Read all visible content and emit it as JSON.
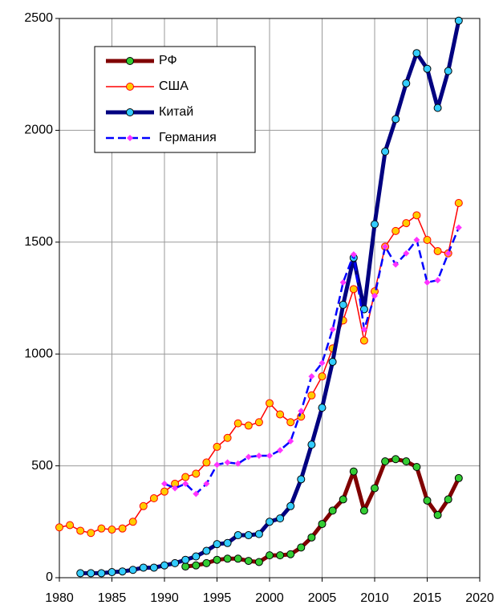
{
  "chart_data": {
    "type": "line",
    "xlim": [
      1980,
      2020
    ],
    "xticks": [
      1980,
      1985,
      1990,
      1995,
      2000,
      2005,
      2010,
      2015,
      2020
    ],
    "ylim": [
      0,
      2500
    ],
    "yticks": [
      0,
      500,
      1000,
      1500,
      2000,
      2500
    ],
    "grid": true,
    "legend": "upper left",
    "series": [
      {
        "name": "РФ",
        "color": "#800000",
        "marker_color": "#33cc33",
        "x": [
          1992,
          1993,
          1994,
          1995,
          1996,
          1997,
          1998,
          1999,
          2000,
          2001,
          2002,
          2003,
          2004,
          2005,
          2006,
          2007,
          2008,
          2009,
          2010,
          2011,
          2012,
          2013,
          2014,
          2015,
          2016,
          2017,
          2018
        ],
        "values": [
          50,
          55,
          65,
          80,
          85,
          85,
          75,
          70,
          100,
          100,
          105,
          135,
          180,
          240,
          300,
          350,
          475,
          300,
          400,
          520,
          530,
          520,
          495,
          345,
          280,
          350,
          445
        ]
      },
      {
        "name": "США",
        "color": "#ff0000",
        "marker_color": "#ffcc00",
        "x": [
          1980,
          1981,
          1982,
          1983,
          1984,
          1985,
          1986,
          1987,
          1988,
          1989,
          1990,
          1991,
          1992,
          1993,
          1994,
          1995,
          1996,
          1997,
          1998,
          1999,
          2000,
          2001,
          2002,
          2003,
          2004,
          2005,
          2006,
          2007,
          2008,
          2009,
          2010,
          2011,
          2012,
          2013,
          2014,
          2015,
          2016,
          2017,
          2018
        ],
        "values": [
          225,
          235,
          210,
          200,
          220,
          215,
          220,
          250,
          320,
          355,
          385,
          420,
          450,
          465,
          515,
          585,
          625,
          690,
          680,
          695,
          780,
          730,
          695,
          720,
          815,
          900,
          1025,
          1150,
          1290,
          1060,
          1280,
          1480,
          1550,
          1585,
          1620,
          1510,
          1460,
          1450,
          1675
        ]
      },
      {
        "name": "Китай",
        "color": "#000080",
        "marker_color": "#33ccff",
        "x": [
          1982,
          1983,
          1984,
          1985,
          1986,
          1987,
          1988,
          1989,
          1990,
          1991,
          1992,
          1993,
          1994,
          1995,
          1996,
          1997,
          1998,
          1999,
          2000,
          2001,
          2002,
          2003,
          2004,
          2005,
          2006,
          2007,
          2008,
          2009,
          2010,
          2011,
          2012,
          2013,
          2014,
          2015,
          2016,
          2017,
          2018
        ],
        "values": [
          20,
          20,
          20,
          25,
          28,
          35,
          45,
          45,
          55,
          65,
          80,
          95,
          120,
          150,
          155,
          190,
          190,
          195,
          250,
          265,
          320,
          440,
          595,
          760,
          965,
          1220,
          1430,
          1200,
          1580,
          1905,
          2050,
          2210,
          2345,
          2275,
          2100,
          2265,
          2490
        ]
      },
      {
        "name": "Германия",
        "color": "#0000ff",
        "marker_color": "#ff33ff",
        "x": [
          1990,
          1991,
          1992,
          1993,
          1994,
          1995,
          1996,
          1997,
          1998,
          1999,
          2000,
          2001,
          2002,
          2003,
          2004,
          2005,
          2006,
          2007,
          2008,
          2009,
          2010,
          2011,
          2012,
          2013,
          2014,
          2015,
          2016,
          2017,
          2018
        ],
        "values": [
          420,
          400,
          420,
          375,
          420,
          505,
          515,
          510,
          540,
          545,
          545,
          570,
          610,
          745,
          900,
          960,
          1110,
          1320,
          1445,
          1110,
          1260,
          1480,
          1400,
          1450,
          1510,
          1320,
          1330,
          1450,
          1565
        ]
      }
    ]
  }
}
